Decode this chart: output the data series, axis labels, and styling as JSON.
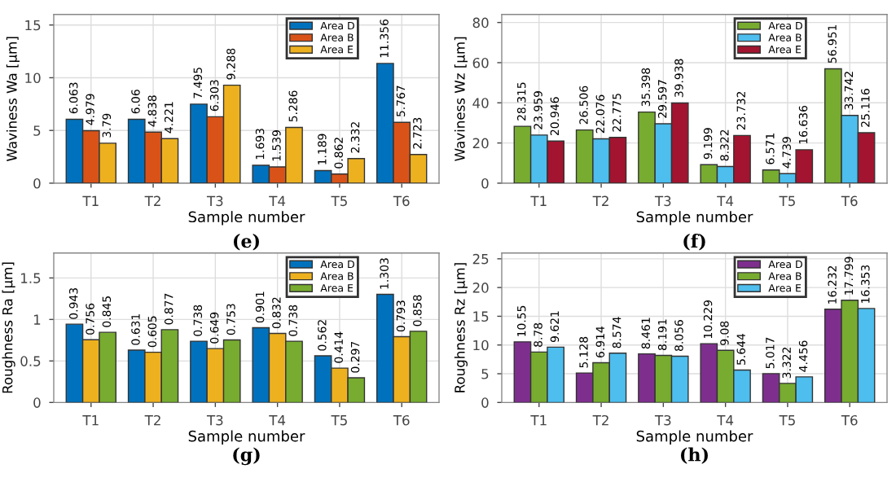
{
  "chart_data": [
    {
      "type": "bar",
      "ylabel": "Waviness Wa [μm]",
      "xlabel": "Sample number",
      "annotations": [
        "(e)"
      ],
      "categories": [
        "T1",
        "T2",
        "T3",
        "T4",
        "T5",
        "T6"
      ],
      "ylim": [
        0,
        16
      ],
      "yticks": [
        0,
        5,
        10,
        15
      ],
      "grid": true,
      "legend": "top right",
      "data_labels": true,
      "series": [
        {
          "name": "Area D",
          "color": "#0072bd",
          "values": [
            6.063,
            6.06,
            7.495,
            1.693,
            1.189,
            11.356
          ]
        },
        {
          "name": "Area B",
          "color": "#d95319",
          "values": [
            4.979,
            4.838,
            6.303,
            1.539,
            0.862,
            5.767
          ]
        },
        {
          "name": "Area E",
          "color": "#edb120",
          "values": [
            3.79,
            4.221,
            9.288,
            5.286,
            2.332,
            2.723
          ]
        }
      ]
    },
    {
      "type": "bar",
      "ylabel": "Waviness Wz [μm]",
      "xlabel": "Sample number",
      "annotations": [
        "(f)"
      ],
      "categories": [
        "T1",
        "T2",
        "T3",
        "T4",
        "T5",
        "T6"
      ],
      "ylim": [
        0,
        84
      ],
      "yticks": [
        0,
        20,
        40,
        60,
        80
      ],
      "grid": true,
      "legend": "top right",
      "data_labels": true,
      "series": [
        {
          "name": "Area D",
          "color": "#77ac30",
          "values": [
            28.315,
            26.506,
            35.398,
            9.199,
            6.571,
            56.951
          ]
        },
        {
          "name": "Area B",
          "color": "#4dbeee",
          "values": [
            23.959,
            22.076,
            29.597,
            8.322,
            4.739,
            33.742
          ]
        },
        {
          "name": "Area E",
          "color": "#a2142f",
          "values": [
            20.946,
            22.775,
            39.938,
            23.732,
            16.636,
            25.116
          ]
        }
      ]
    },
    {
      "type": "bar",
      "ylabel": "Roughness Ra [μm]",
      "xlabel": "Sample number",
      "annotations": [
        "(g)"
      ],
      "categories": [
        "T1",
        "T2",
        "T3",
        "T4",
        "T5",
        "T6"
      ],
      "ylim": [
        0,
        1.8
      ],
      "yticks": [
        0,
        0.5,
        1,
        1.5
      ],
      "grid": true,
      "legend": "top right",
      "data_labels": true,
      "series": [
        {
          "name": "Area D",
          "color": "#0072bd",
          "values": [
            0.943,
            0.631,
            0.738,
            0.901,
            0.562,
            1.303
          ]
        },
        {
          "name": "Area B",
          "color": "#edb120",
          "values": [
            0.756,
            0.605,
            0.649,
            0.832,
            0.414,
            0.793
          ]
        },
        {
          "name": "Area E",
          "color": "#77ac30",
          "values": [
            0.845,
            0.877,
            0.753,
            0.738,
            0.297,
            0.858
          ]
        }
      ]
    },
    {
      "type": "bar",
      "ylabel": "Roughness Rz [μm]",
      "xlabel": "Sample number",
      "annotations": [
        "(h)"
      ],
      "categories": [
        "T1",
        "T2",
        "T3",
        "T4",
        "T5",
        "T6"
      ],
      "ylim": [
        0,
        26
      ],
      "yticks": [
        0,
        5,
        10,
        15,
        20,
        25
      ],
      "grid": true,
      "legend": "top right",
      "data_labels": true,
      "series": [
        {
          "name": "Area D",
          "color": "#7e2f8e",
          "values": [
            10.55,
            5.128,
            8.461,
            10.229,
            5.017,
            16.232
          ]
        },
        {
          "name": "Area B",
          "color": "#77ac30",
          "values": [
            8.78,
            6.914,
            8.191,
            9.08,
            3.322,
            17.799
          ]
        },
        {
          "name": "Area E",
          "color": "#4dbeee",
          "values": [
            9.621,
            8.574,
            8.056,
            5.644,
            4.456,
            16.353
          ]
        }
      ]
    }
  ]
}
